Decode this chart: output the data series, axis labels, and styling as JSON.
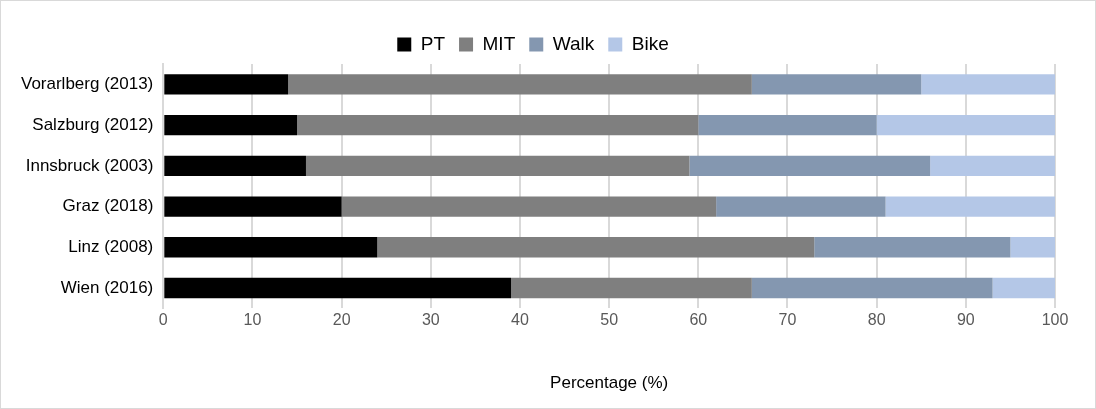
{
  "chart_data": {
    "type": "bar",
    "orientation": "horizontal",
    "stacked": true,
    "xlabel": "Percentage (%)",
    "categories": [
      "Vorarlberg (2013)",
      "Salzburg (2012)",
      "Innsbruck (2003)",
      "Graz (2018)",
      "Linz (2008)",
      "Wien (2016)"
    ],
    "series": [
      {
        "name": "PT",
        "color": "#000000",
        "values": [
          14,
          15,
          16,
          20,
          24,
          39
        ]
      },
      {
        "name": "MIT",
        "color": "#7f7f7f",
        "values": [
          52,
          45,
          43,
          42,
          49,
          27
        ]
      },
      {
        "name": "Walk",
        "color": "#8497b0",
        "values": [
          19,
          20,
          27,
          19,
          22,
          27
        ]
      },
      {
        "name": "Bike",
        "color": "#b4c7e7",
        "values": [
          15,
          20,
          14,
          19,
          5,
          7
        ]
      }
    ],
    "xlim": [
      0,
      100
    ],
    "xticks": [
      0,
      10,
      20,
      30,
      40,
      50,
      60,
      70,
      80,
      90,
      100
    ],
    "grid": "x",
    "legend": "top"
  }
}
